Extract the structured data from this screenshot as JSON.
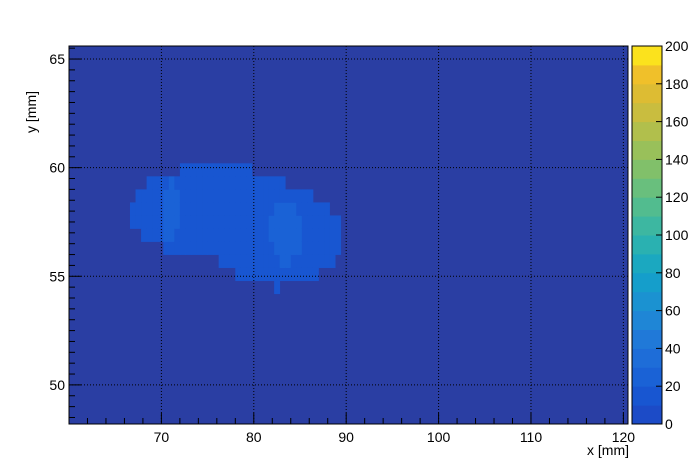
{
  "chart_data": {
    "type": "heatmap",
    "xlabel": "x [mm]",
    "ylabel": "y [mm]",
    "xlim": [
      60,
      120.5
    ],
    "ylim": [
      48.2,
      65.6
    ],
    "x_ticks": [
      70,
      80,
      90,
      100,
      110,
      120
    ],
    "y_ticks": [
      50,
      55,
      60,
      65
    ],
    "grid": true,
    "colorbar": {
      "range": [
        0,
        200
      ],
      "ticks": [
        0,
        20,
        40,
        60,
        80,
        100,
        120,
        140,
        160,
        180,
        200
      ],
      "levels": 20,
      "palette": [
        "#2a3ea3",
        "#1c4bc7",
        "#1856d1",
        "#1a62d6",
        "#1e6dd8",
        "#2079d8",
        "#1f86d6",
        "#1b92d1",
        "#159ecb",
        "#1ba8c0",
        "#2ab1b1",
        "#3db7a1",
        "#52bc8f",
        "#69bf7d",
        "#81c06a",
        "#99c05a",
        "#b1bf4c",
        "#c9bd3f",
        "#ddbc33",
        "#f0c02a",
        "#fbe21d",
        "#ffff00"
      ],
      "background_color": "#2a3ea3"
    },
    "blobs": [
      {
        "cx": 76.0,
        "cy": 58.0,
        "rx": 9.5,
        "ry": 2.1,
        "value": 22
      },
      {
        "cx": 82.5,
        "cy": 56.8,
        "rx": 7.0,
        "ry": 2.3,
        "value": 24
      },
      {
        "cx": 71.0,
        "cy": 58.0,
        "rx": 1.0,
        "ry": 1.4,
        "value": 30
      },
      {
        "cx": 83.5,
        "cy": 57.0,
        "rx": 1.8,
        "ry": 1.4,
        "value": 32
      }
    ]
  }
}
